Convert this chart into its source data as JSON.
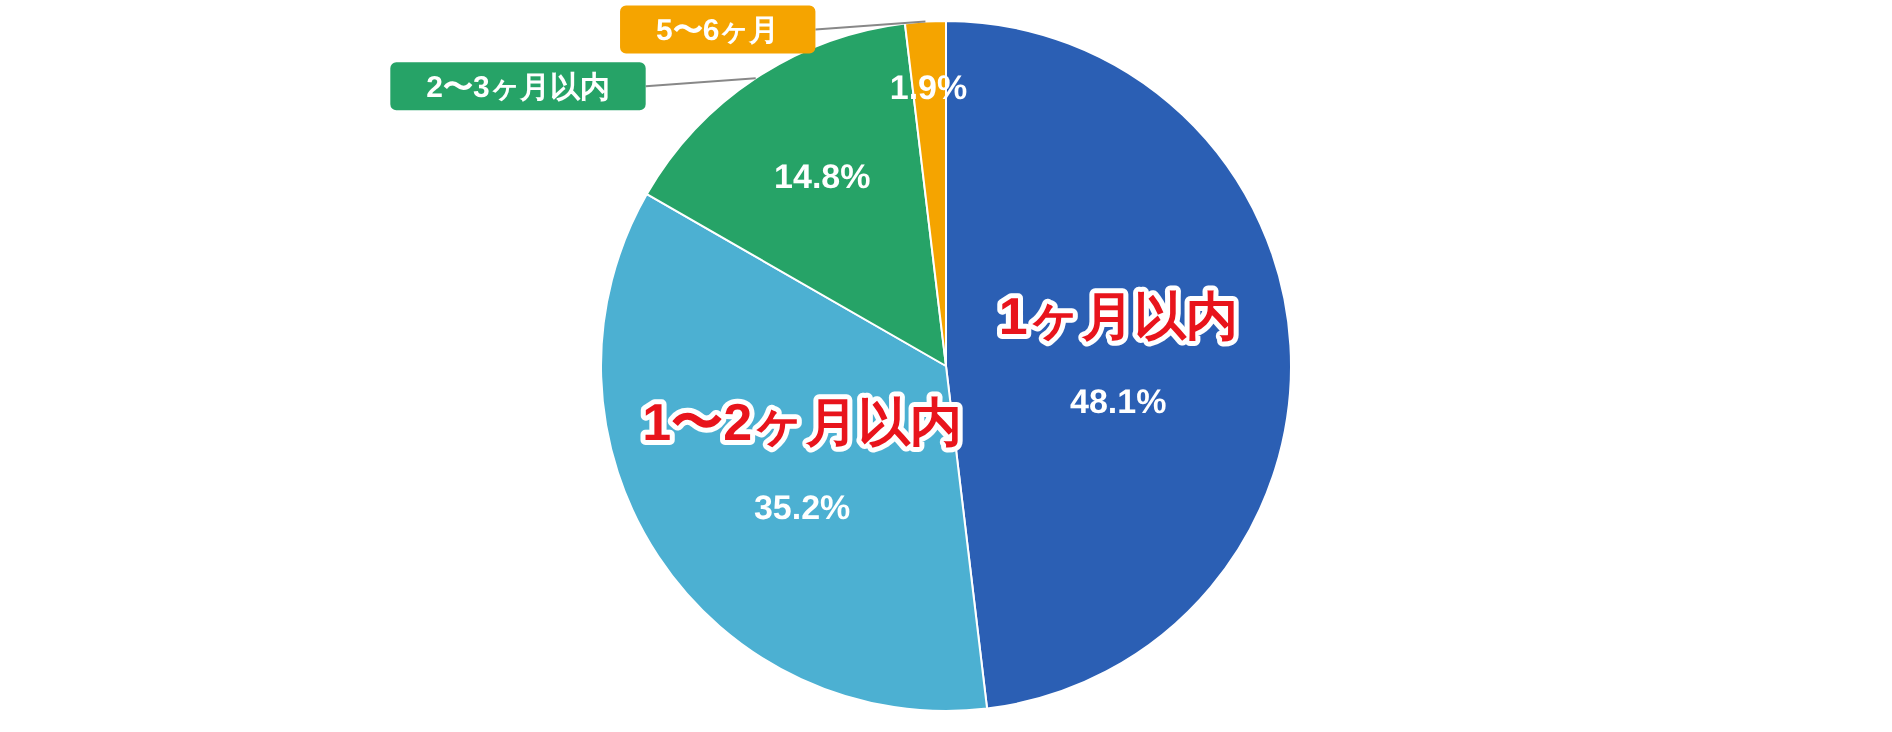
{
  "chart_data": {
    "type": "pie",
    "categories": [
      "1ヶ月以内",
      "1〜2ヶ月以内",
      "2〜3ヶ月以内",
      "5〜6ヶ月"
    ],
    "values": [
      48.1,
      35.2,
      14.8,
      1.9
    ],
    "value_labels": [
      "48.1%",
      "35.2%",
      "14.8%",
      "1.9%"
    ],
    "colors": [
      "#2b5fb4",
      "#4cb0d2",
      "#26a367",
      "#f5a400"
    ],
    "legend": false
  }
}
